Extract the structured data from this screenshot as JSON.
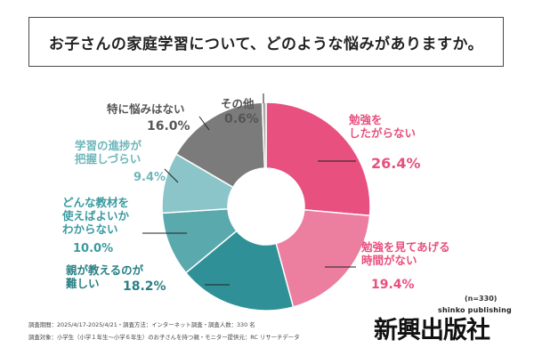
{
  "title": "お子さんの家庭学習について、どのような悩みがありますか。",
  "sample_size": "(n=330)",
  "footnote_lines": [
    "調査期間：2025/4/17-2025/4/21・調査方法：インターネット調査・調査人数：330 名",
    "調査対象：小学生（小学１年生〜小学６年生）のお子さんを持つ親・モニター提供元：RC リサーチデータ"
  ],
  "logo": {
    "main": "新興出版社",
    "sub": "shinko publishing"
  },
  "chart_data": {
    "type": "pie",
    "donut": true,
    "start": "12 o'clock, clockwise",
    "categories": [
      "勉強をしたがらない",
      "勉強を見てあげる時間がない",
      "親が教えるのが難しい",
      "どんな教材を使えばよいかわからない",
      "学習の進捗が把握しづらい",
      "特に悩みはない",
      "その他"
    ],
    "values": [
      26.4,
      19.4,
      18.2,
      10.0,
      9.4,
      16.0,
      0.6
    ],
    "value_labels": [
      "26.4%",
      "19.4%",
      "18.2%",
      "10.0%",
      "9.4%",
      "16.0%",
      "0.6%"
    ],
    "label_lines": [
      [
        "勉強を",
        "したがらない"
      ],
      [
        "勉強を見てあげる",
        "時間がない"
      ],
      [
        "親が教えるのが",
        "難しい"
      ],
      [
        "どんな教材を",
        "使えばよいか",
        "わからない"
      ],
      [
        "学習の進捗が",
        "把握しづらい"
      ],
      [
        "特に悩みはない"
      ],
      [
        "その他"
      ]
    ],
    "colors": [
      "#e8507f",
      "#ec7fa0",
      "#2f9197",
      "#5aa9ad",
      "#8cc5c9",
      "#7b7b7b",
      "#a9a9a9"
    ],
    "label_colors": [
      "#e8507f",
      "#e8507f",
      "#2a7f84",
      "#3a9ba0",
      "#6fb6ba",
      "#555555",
      "#555555"
    ],
    "value_colors": [
      "#e8507f",
      "#e8507f",
      "#2a7f84",
      "#3a9ba0",
      "#6fb6ba",
      "#555555",
      "#555555"
    ]
  }
}
